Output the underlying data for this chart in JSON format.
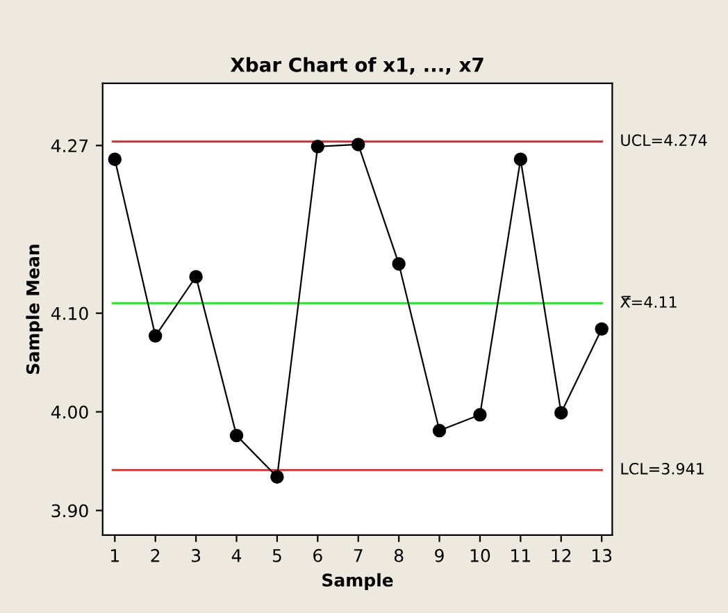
{
  "chart_data": {
    "type": "line",
    "title": "Xbar Chart of x1, ..., x7",
    "xlabel": "Sample",
    "ylabel": "Sample Mean",
    "x": [
      1,
      2,
      3,
      4,
      5,
      6,
      7,
      8,
      9,
      10,
      11,
      12,
      13
    ],
    "series": [
      {
        "color": "#000000",
        "values": [
          4.256,
          4.077,
          4.137,
          3.976,
          3.934,
          4.269,
          4.271,
          4.15,
          3.981,
          3.997,
          4.256,
          3.999,
          4.084
        ]
      }
    ],
    "marker": "circle",
    "line_style": "solid",
    "grid": false,
    "legend": false,
    "xlim": [
      0.7,
      13.26
    ],
    "xticks": [
      1,
      2,
      3,
      4,
      5,
      6,
      7,
      8,
      9,
      10,
      11,
      12,
      13
    ],
    "ylim": [
      3.875,
      4.333
    ],
    "yticks": [
      {
        "value": 3.9,
        "label": "3.90"
      },
      {
        "value": 4.0,
        "label": "4.00"
      },
      {
        "value": 4.1,
        "label": "4.10"
      },
      4.27
    ],
    "ref_lines": [
      {
        "axis": "y",
        "value": 4.274,
        "label": "UCL=4.274",
        "color": "#e0202a"
      },
      {
        "axis": "y",
        "value": 4.11,
        "label": "X̿=4.11",
        "color": "#00ff00"
      },
      {
        "axis": "y",
        "value": 3.941,
        "label": "LCL=3.941",
        "color": "#ff2020"
      }
    ]
  }
}
